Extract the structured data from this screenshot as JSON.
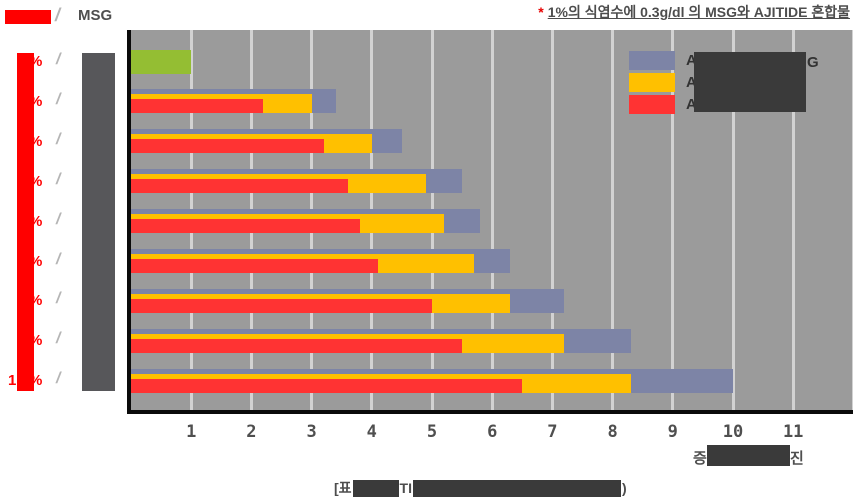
{
  "footnote": {
    "marker": "*",
    "text": "1%의 식염수에 0.3g/dl 의 MSG와 AJITIDE 혼합물"
  },
  "left_header": {
    "left_label_redacted": true,
    "separator": "/",
    "right_label": "MSG"
  },
  "left_rows": [
    {
      "prefix": "",
      "suffix": "%",
      "separator": "/"
    },
    {
      "prefix": "",
      "suffix": "%",
      "separator": "/"
    },
    {
      "prefix": "",
      "suffix": "%",
      "separator": "/"
    },
    {
      "prefix": "",
      "suffix": "%",
      "separator": "/"
    },
    {
      "prefix": "",
      "suffix": "%",
      "separator": "/"
    },
    {
      "prefix": "",
      "suffix": "%",
      "separator": "/"
    },
    {
      "prefix": "",
      "suffix": "%",
      "separator": "/"
    },
    {
      "prefix": "",
      "suffix": "%",
      "separator": "/"
    },
    {
      "prefix": "1",
      "suffix": "%",
      "separator": "/"
    }
  ],
  "legend": {
    "entries": [
      {
        "swatch_color": "#7D84A6",
        "visible_start": "A",
        "visible_end": "G"
      },
      {
        "swatch_color": "#FFC000",
        "visible_start": "A",
        "visible_end": ""
      },
      {
        "swatch_color": "#FF3333",
        "visible_start": "A",
        "visible_end": ""
      }
    ],
    "labels_redacted": true
  },
  "x_axis": {
    "ticks": [
      "1",
      "2",
      "3",
      "4",
      "5",
      "6",
      "7",
      "8",
      "9",
      "10",
      "11"
    ],
    "title_start": "증",
    "title_end": "진",
    "title_redacted": true
  },
  "caption": {
    "fragments": [
      "[표",
      "TI",
      ")"
    ],
    "redacted": true
  },
  "colors": {
    "bar_red": "#FF3333",
    "bar_yellow": "#FFC000",
    "bar_gray": "#7D84A6",
    "bar_green": "#94BE33",
    "redaction_red": "#FF0000",
    "redaction_dark": "#3A3A3A",
    "redaction_gray": "#57575A",
    "plot_bg": "#9B9B9B",
    "gridline": "#D2D2D2"
  },
  "chart_data": {
    "type": "bar",
    "orientation": "horizontal",
    "xlim": [
      0,
      12
    ],
    "x_ticks": [
      1,
      2,
      3,
      4,
      5,
      6,
      7,
      8,
      9,
      10,
      11
    ],
    "grid": true,
    "note": "Row category labels, legend series names, axis title and caption are partially covered by redaction boxes in the source image. Three overlapping series per row (gray behind, yellow middle, red front); first row is a single green baseline bar of value 1.0.",
    "rows": [
      {
        "green": 1.0
      },
      {
        "red": 2.2,
        "yellow": 3.0,
        "gray": 3.4
      },
      {
        "red": 3.2,
        "yellow": 4.0,
        "gray": 4.5
      },
      {
        "red": 3.6,
        "yellow": 4.9,
        "gray": 5.5
      },
      {
        "red": 3.8,
        "yellow": 5.2,
        "gray": 5.8
      },
      {
        "red": 4.1,
        "yellow": 5.7,
        "gray": 6.3
      },
      {
        "red": 5.0,
        "yellow": 6.3,
        "gray": 7.2
      },
      {
        "red": 5.5,
        "yellow": 7.2,
        "gray": 8.3
      },
      {
        "red": 6.5,
        "yellow": 8.3,
        "gray": 10.0
      }
    ]
  }
}
